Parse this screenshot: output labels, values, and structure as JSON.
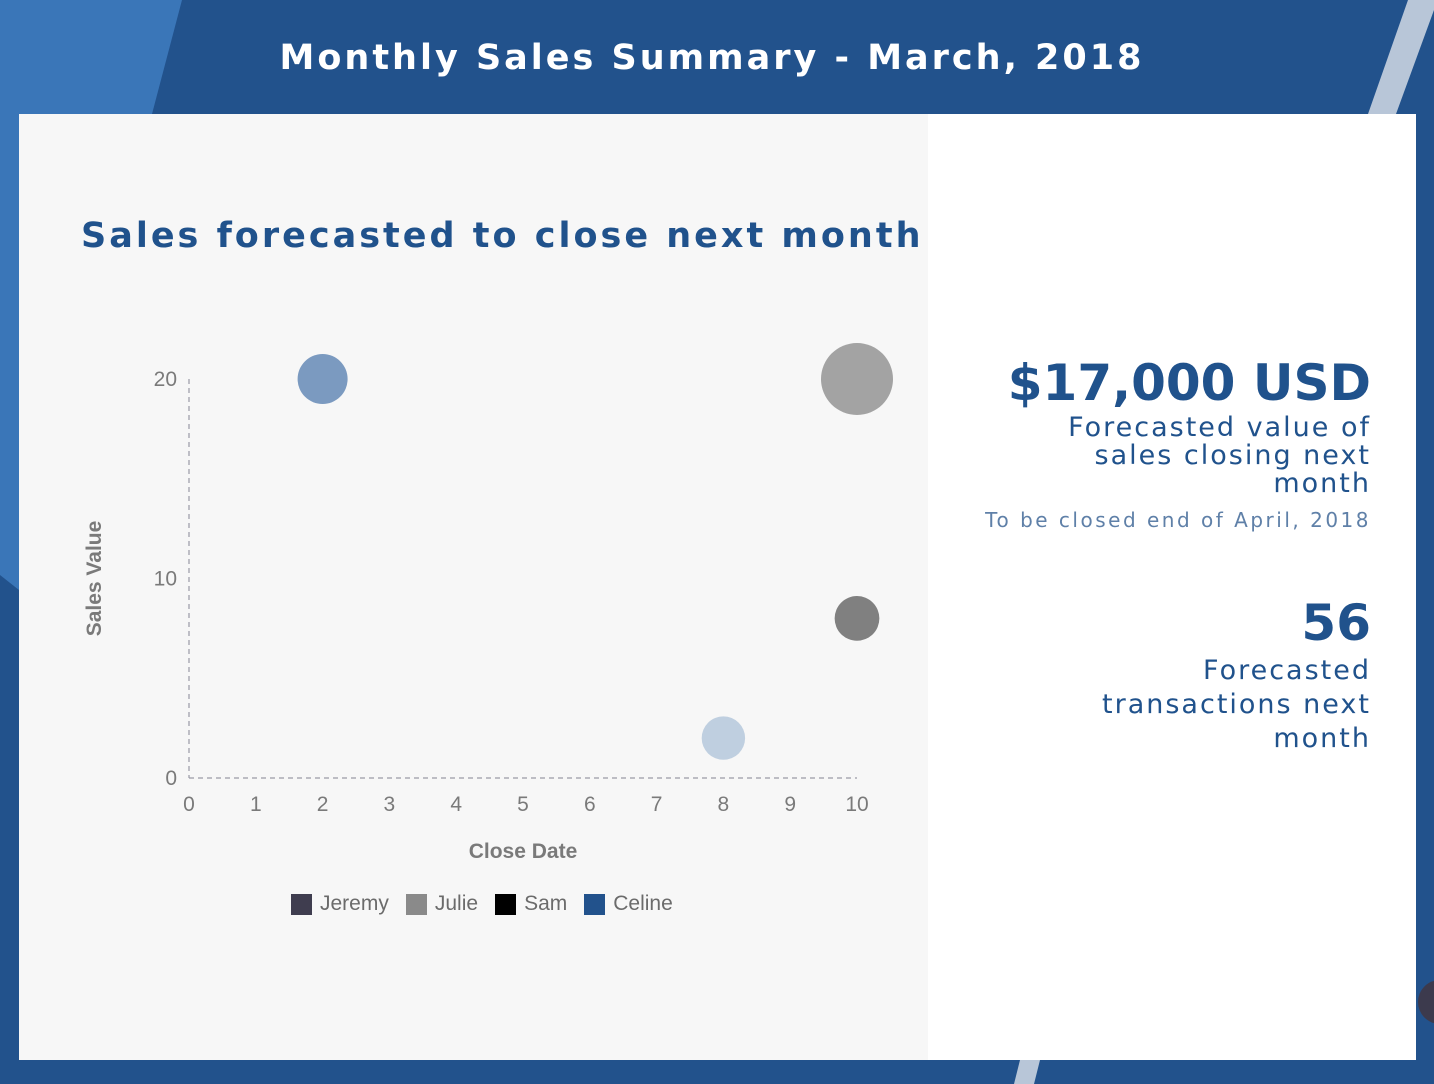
{
  "page": {
    "title": "Monthly Sales Summary - March, 2018"
  },
  "colors": {
    "background": "#22528c",
    "accent": "#20528c",
    "panel_left": "#f7f7f7",
    "panel_right": "#ffffff"
  },
  "chart_data": {
    "type": "scatter",
    "title": "Sales forecasted to close next month",
    "xlabel": "Close Date",
    "ylabel": "Sales Value",
    "xlim": [
      0,
      10
    ],
    "ylim": [
      0,
      20
    ],
    "x_ticks": [
      "0",
      "1",
      "2",
      "3",
      "4",
      "5",
      "6",
      "7",
      "8",
      "9",
      "10"
    ],
    "y_ticks": [
      "0",
      "10",
      "20"
    ],
    "grid": false,
    "legend_position": "bottom",
    "legend": [
      {
        "name": "Jeremy",
        "color": "#3f3d4f"
      },
      {
        "name": "Julie",
        "color": "#8a8a8a"
      },
      {
        "name": "Sam",
        "color": "#000000"
      },
      {
        "name": "Celine",
        "color": "#22528c"
      }
    ],
    "points": [
      {
        "x": 2,
        "y": 20,
        "size": 1,
        "color": "#7b9ac0"
      },
      {
        "x": 10,
        "y": 20,
        "size": 5,
        "color": "#a3a3a3"
      },
      {
        "x": 10,
        "y": 8,
        "size": 0.5,
        "color": "#808080"
      },
      {
        "x": 8,
        "y": 2,
        "size": 0.4,
        "color": "#bfcfe0"
      }
    ]
  },
  "stats": {
    "forecast_value": "$17,000 USD",
    "forecast_label": "Forecasted value of sales closing next month",
    "forecast_note": "To be closed end of April, 2018",
    "transactions_count": "56",
    "transactions_label": "Forecasted transactions next month"
  }
}
